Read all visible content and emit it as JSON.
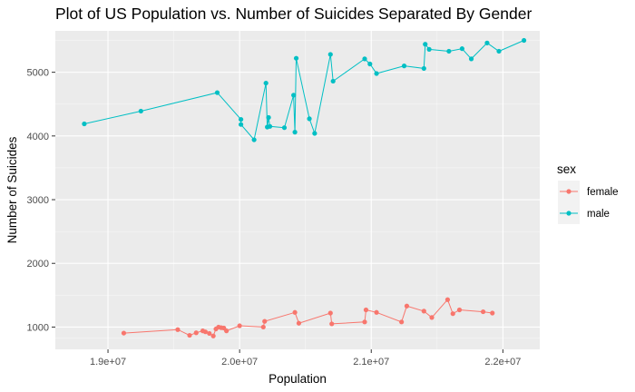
{
  "chart_data": {
    "type": "line",
    "title": "Plot of US Population vs. Number of Suicides Separated By Gender",
    "xlabel": "Population",
    "ylabel": "Number of Suicides",
    "x_ticks": [
      "1.9e+07",
      "2.0e+07",
      "2.1e+07",
      "2.2e+07"
    ],
    "x_tick_values": [
      19000000,
      20000000,
      21000000,
      22000000
    ],
    "y_ticks": [
      "1000",
      "2000",
      "3000",
      "4000",
      "5000"
    ],
    "y_tick_values": [
      1000,
      2000,
      3000,
      4000,
      5000
    ],
    "xlim": [
      18600000,
      22280000
    ],
    "ylim": [
      650,
      5650
    ],
    "grid": true,
    "legend": {
      "title": "sex",
      "position": "right"
    },
    "series": [
      {
        "name": "female",
        "color": "#F8766D",
        "points": [
          {
            "x": 19120000,
            "y": 905
          },
          {
            "x": 19530000,
            "y": 960
          },
          {
            "x": 19620000,
            "y": 870
          },
          {
            "x": 19670000,
            "y": 910
          },
          {
            "x": 19720000,
            "y": 940
          },
          {
            "x": 19740000,
            "y": 925
          },
          {
            "x": 19770000,
            "y": 900
          },
          {
            "x": 19800000,
            "y": 860
          },
          {
            "x": 19820000,
            "y": 970
          },
          {
            "x": 19840000,
            "y": 1000
          },
          {
            "x": 19860000,
            "y": 990
          },
          {
            "x": 19880000,
            "y": 985
          },
          {
            "x": 19900000,
            "y": 940
          },
          {
            "x": 20000000,
            "y": 1020
          },
          {
            "x": 20180000,
            "y": 1000
          },
          {
            "x": 20190000,
            "y": 1090
          },
          {
            "x": 20420000,
            "y": 1230
          },
          {
            "x": 20450000,
            "y": 1060
          },
          {
            "x": 20690000,
            "y": 1220
          },
          {
            "x": 20700000,
            "y": 1050
          },
          {
            "x": 20950000,
            "y": 1080
          },
          {
            "x": 20960000,
            "y": 1270
          },
          {
            "x": 21040000,
            "y": 1230
          },
          {
            "x": 21230000,
            "y": 1080
          },
          {
            "x": 21270000,
            "y": 1330
          },
          {
            "x": 21400000,
            "y": 1250
          },
          {
            "x": 21460000,
            "y": 1150
          },
          {
            "x": 21580000,
            "y": 1430
          },
          {
            "x": 21620000,
            "y": 1210
          },
          {
            "x": 21670000,
            "y": 1270
          },
          {
            "x": 21850000,
            "y": 1240
          },
          {
            "x": 21920000,
            "y": 1220
          }
        ]
      },
      {
        "name": "male",
        "color": "#00BFC4",
        "points": [
          {
            "x": 18820000,
            "y": 4190
          },
          {
            "x": 19250000,
            "y": 4390
          },
          {
            "x": 19830000,
            "y": 4680
          },
          {
            "x": 20010000,
            "y": 4260
          },
          {
            "x": 20010000,
            "y": 4180
          },
          {
            "x": 20110000,
            "y": 3940
          },
          {
            "x": 20200000,
            "y": 4830
          },
          {
            "x": 20210000,
            "y": 4140
          },
          {
            "x": 20220000,
            "y": 4290
          },
          {
            "x": 20230000,
            "y": 4150
          },
          {
            "x": 20340000,
            "y": 4130
          },
          {
            "x": 20410000,
            "y": 4640
          },
          {
            "x": 20420000,
            "y": 4060
          },
          {
            "x": 20430000,
            "y": 5220
          },
          {
            "x": 20530000,
            "y": 4270
          },
          {
            "x": 20570000,
            "y": 4040
          },
          {
            "x": 20690000,
            "y": 5280
          },
          {
            "x": 20710000,
            "y": 4860
          },
          {
            "x": 20950000,
            "y": 5210
          },
          {
            "x": 20990000,
            "y": 5130
          },
          {
            "x": 21040000,
            "y": 4980
          },
          {
            "x": 21250000,
            "y": 5100
          },
          {
            "x": 21400000,
            "y": 5060
          },
          {
            "x": 21410000,
            "y": 5440
          },
          {
            "x": 21440000,
            "y": 5360
          },
          {
            "x": 21590000,
            "y": 5330
          },
          {
            "x": 21690000,
            "y": 5370
          },
          {
            "x": 21760000,
            "y": 5210
          },
          {
            "x": 21880000,
            "y": 5460
          },
          {
            "x": 21970000,
            "y": 5330
          },
          {
            "x": 22160000,
            "y": 5500
          }
        ]
      }
    ]
  }
}
